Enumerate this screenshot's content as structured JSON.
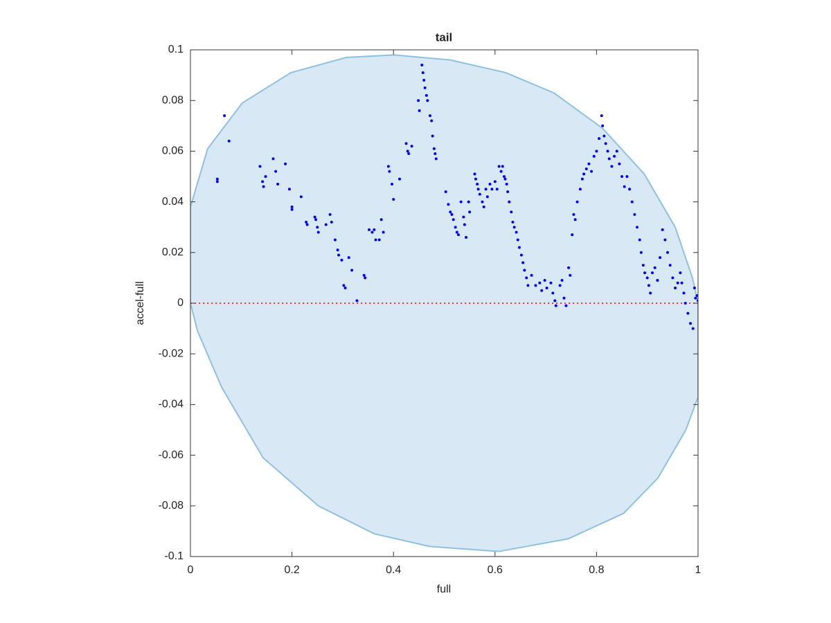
{
  "chart_data": {
    "type": "scatter",
    "title": "tail",
    "xlabel": "full",
    "ylabel": "accel-full",
    "xlim": [
      0,
      1
    ],
    "ylim": [
      -0.1,
      0.1
    ],
    "xticks": [
      0,
      0.2,
      0.4,
      0.6,
      0.8,
      1
    ],
    "yticks": [
      -0.1,
      -0.08,
      -0.06,
      -0.04,
      -0.02,
      0,
      0.02,
      0.04,
      0.06,
      0.08,
      0.1
    ],
    "reference_line": {
      "y": 0,
      "color": "#ff0000",
      "style": "dotted"
    },
    "area": {
      "color": "#d9e8f5",
      "edge_color": "#8ec0e0",
      "x": [
        0,
        0.034,
        0.102,
        0.198,
        0.307,
        0.402,
        0.512,
        0.621,
        0.716,
        0.812,
        0.894,
        0.955,
        0.989,
        1,
        1,
        0.976,
        0.921,
        0.853,
        0.744,
        0.607,
        0.471,
        0.362,
        0.252,
        0.143,
        0.061,
        0.014,
        0
      ],
      "y": [
        0.038,
        0.061,
        0.079,
        0.091,
        0.097,
        0.098,
        0.096,
        0.091,
        0.083,
        0.069,
        0.051,
        0.03,
        0.01,
        0,
        -0.037,
        -0.05,
        -0.069,
        -0.083,
        -0.093,
        -0.098,
        -0.096,
        -0.091,
        -0.08,
        -0.061,
        -0.033,
        -0.011,
        0
      ]
    },
    "series": [
      {
        "color": "#0000ff",
        "x": [
          0.053,
          0.053,
          0.067,
          0.076,
          0.137,
          0.142,
          0.144,
          0.148,
          0.163,
          0.168,
          0.172,
          0.187,
          0.195,
          0.2,
          0.2,
          0.218,
          0.228,
          0.23,
          0.245,
          0.247,
          0.25,
          0.252,
          0.267,
          0.275,
          0.278,
          0.285,
          0.29,
          0.292,
          0.298,
          0.302,
          0.305,
          0.312,
          0.318,
          0.328,
          0.342,
          0.344,
          0.352,
          0.358,
          0.362,
          0.365,
          0.372,
          0.376,
          0.38,
          0.39,
          0.392,
          0.397,
          0.4,
          0.412,
          0.425,
          0.428,
          0.43,
          0.436,
          0.449,
          0.451,
          0.456,
          0.458,
          0.46,
          0.462,
          0.465,
          0.467,
          0.472,
          0.475,
          0.477,
          0.48,
          0.482,
          0.484,
          0.503,
          0.508,
          0.512,
          0.515,
          0.518,
          0.522,
          0.525,
          0.528,
          0.533,
          0.538,
          0.54,
          0.543,
          0.548,
          0.55,
          0.56,
          0.562,
          0.565,
          0.567,
          0.57,
          0.575,
          0.578,
          0.582,
          0.585,
          0.59,
          0.594,
          0.6,
          0.604,
          0.608,
          0.612,
          0.615,
          0.618,
          0.62,
          0.623,
          0.625,
          0.628,
          0.632,
          0.635,
          0.638,
          0.642,
          0.645,
          0.648,
          0.652,
          0.655,
          0.658,
          0.662,
          0.665,
          0.672,
          0.68,
          0.688,
          0.692,
          0.698,
          0.702,
          0.71,
          0.714,
          0.718,
          0.72,
          0.728,
          0.732,
          0.736,
          0.74,
          0.745,
          0.748,
          0.752,
          0.755,
          0.758,
          0.762,
          0.768,
          0.772,
          0.775,
          0.78,
          0.785,
          0.79,
          0.795,
          0.8,
          0.805,
          0.81,
          0.812,
          0.815,
          0.818,
          0.822,
          0.825,
          0.83,
          0.835,
          0.84,
          0.845,
          0.85,
          0.855,
          0.86,
          0.865,
          0.87,
          0.875,
          0.88,
          0.885,
          0.888,
          0.892,
          0.895,
          0.9,
          0.903,
          0.906,
          0.91,
          0.915,
          0.92,
          0.925,
          0.93,
          0.935,
          0.94,
          0.945,
          0.95,
          0.955,
          0.96,
          0.965,
          0.968,
          0.972,
          0.975,
          0.98,
          0.985,
          0.99,
          0.993,
          0.995,
          0.998,
          1.0
        ],
        "y": [
          0.049,
          0.048,
          0.074,
          0.064,
          0.054,
          0.048,
          0.046,
          0.05,
          0.057,
          0.052,
          0.047,
          0.055,
          0.045,
          0.038,
          0.037,
          0.042,
          0.032,
          0.031,
          0.034,
          0.033,
          0.03,
          0.028,
          0.031,
          0.035,
          0.032,
          0.025,
          0.021,
          0.019,
          0.017,
          0.007,
          0.006,
          0.018,
          0.013,
          0.001,
          0.011,
          0.01,
          0.029,
          0.028,
          0.029,
          0.025,
          0.025,
          0.033,
          0.028,
          0.054,
          0.052,
          0.047,
          0.041,
          0.049,
          0.063,
          0.06,
          0.059,
          0.062,
          0.08,
          0.076,
          0.094,
          0.091,
          0.088,
          0.085,
          0.082,
          0.08,
          0.074,
          0.072,
          0.066,
          0.061,
          0.059,
          0.057,
          0.044,
          0.039,
          0.036,
          0.035,
          0.033,
          0.03,
          0.028,
          0.027,
          0.04,
          0.034,
          0.031,
          0.026,
          0.04,
          0.036,
          0.051,
          0.049,
          0.047,
          0.045,
          0.043,
          0.04,
          0.038,
          0.045,
          0.042,
          0.047,
          0.045,
          0.048,
          0.045,
          0.054,
          0.052,
          0.054,
          0.05,
          0.049,
          0.047,
          0.044,
          0.04,
          0.036,
          0.032,
          0.03,
          0.028,
          0.025,
          0.022,
          0.019,
          0.016,
          0.013,
          0.01,
          0.007,
          0.011,
          0.007,
          0.008,
          0.005,
          0.009,
          0.006,
          0.008,
          0.004,
          0.001,
          -0.001,
          0.007,
          0.009,
          0.002,
          -0.001,
          0.014,
          0.011,
          0.027,
          0.035,
          0.033,
          0.04,
          0.045,
          0.049,
          0.051,
          0.053,
          0.055,
          0.052,
          0.058,
          0.06,
          0.065,
          0.074,
          0.07,
          0.066,
          0.063,
          0.06,
          0.057,
          0.054,
          0.058,
          0.06,
          0.055,
          0.05,
          0.046,
          0.05,
          0.045,
          0.04,
          0.035,
          0.03,
          0.025,
          0.02,
          0.015,
          0.012,
          0.01,
          0.007,
          0.004,
          0.012,
          0.014,
          0.009,
          0.018,
          0.029,
          0.025,
          0.02,
          0.015,
          0.01,
          0.006,
          0.008,
          0.012,
          0.008,
          0.004,
          0.0,
          -0.004,
          -0.008,
          -0.01,
          0.006,
          0.002,
          0.003,
          0.001
        ]
      }
    ]
  }
}
